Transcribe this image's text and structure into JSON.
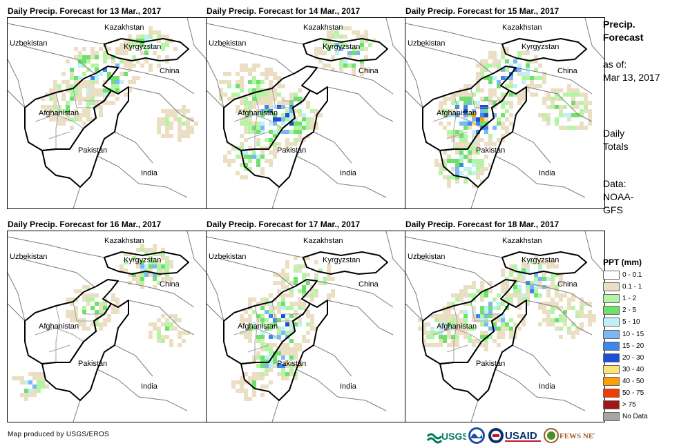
{
  "panels": [
    {
      "title": "Daily Precip. Forecast for 13 Mar., 2017"
    },
    {
      "title": "Daily Precip. Forecast for 14 Mar., 2017"
    },
    {
      "title": "Daily Precip. Forecast for 15 Mar., 2017"
    },
    {
      "title": "Daily Precip. Forecast for 16 Mar., 2017"
    },
    {
      "title": "Daily Precip. Forecast for 17 Mar., 2017"
    },
    {
      "title": "Daily Precip. Forecast for 18 Mar., 2017"
    }
  ],
  "map_labels": {
    "kazakhstan": "Kazakhstan",
    "uzbekistan": "Uzbekistan",
    "kyrgyzstan": "Kyrgyzstan",
    "china": "China",
    "afghanistan": "Afghanistan",
    "pakistan": "Pakistan",
    "india": "India"
  },
  "sidebar": {
    "title_line1": "Precip.",
    "title_line2": "Forecast",
    "asof_line1": "as of:",
    "asof_line2": "Mar 13, 2017",
    "totals_line1": "Daily",
    "totals_line2": "Totals",
    "data_line1": "Data:",
    "data_line2": "NOAA-",
    "data_line3": "GFS"
  },
  "legend": {
    "title": "PPT (mm)",
    "items": [
      {
        "label": "0 - 0.1",
        "color": "#ffffff"
      },
      {
        "label": "0.1 - 1",
        "color": "#eadfc3"
      },
      {
        "label": "1 - 2",
        "color": "#b3f5a3"
      },
      {
        "label": "2 - 5",
        "color": "#6ee06b"
      },
      {
        "label": "5 - 10",
        "color": "#bff0f7"
      },
      {
        "label": "10 - 15",
        "color": "#7ab7f5"
      },
      {
        "label": "15 - 20",
        "color": "#3d86eb"
      },
      {
        "label": "20 - 30",
        "color": "#1a4fd6"
      },
      {
        "label": "30 - 40",
        "color": "#fce27a"
      },
      {
        "label": "40 - 50",
        "color": "#fba000"
      },
      {
        "label": "50 - 75",
        "color": "#f23c05"
      },
      {
        "label": "> 75",
        "color": "#a31616"
      },
      {
        "label": "No Data",
        "color": "#a6a6a6"
      }
    ]
  },
  "footer": {
    "credit": "Map produced by USGS/EROS",
    "logo_usgs": "USGS",
    "logo_usaid": "USAID",
    "logo_fews": "FEWS NET"
  }
}
